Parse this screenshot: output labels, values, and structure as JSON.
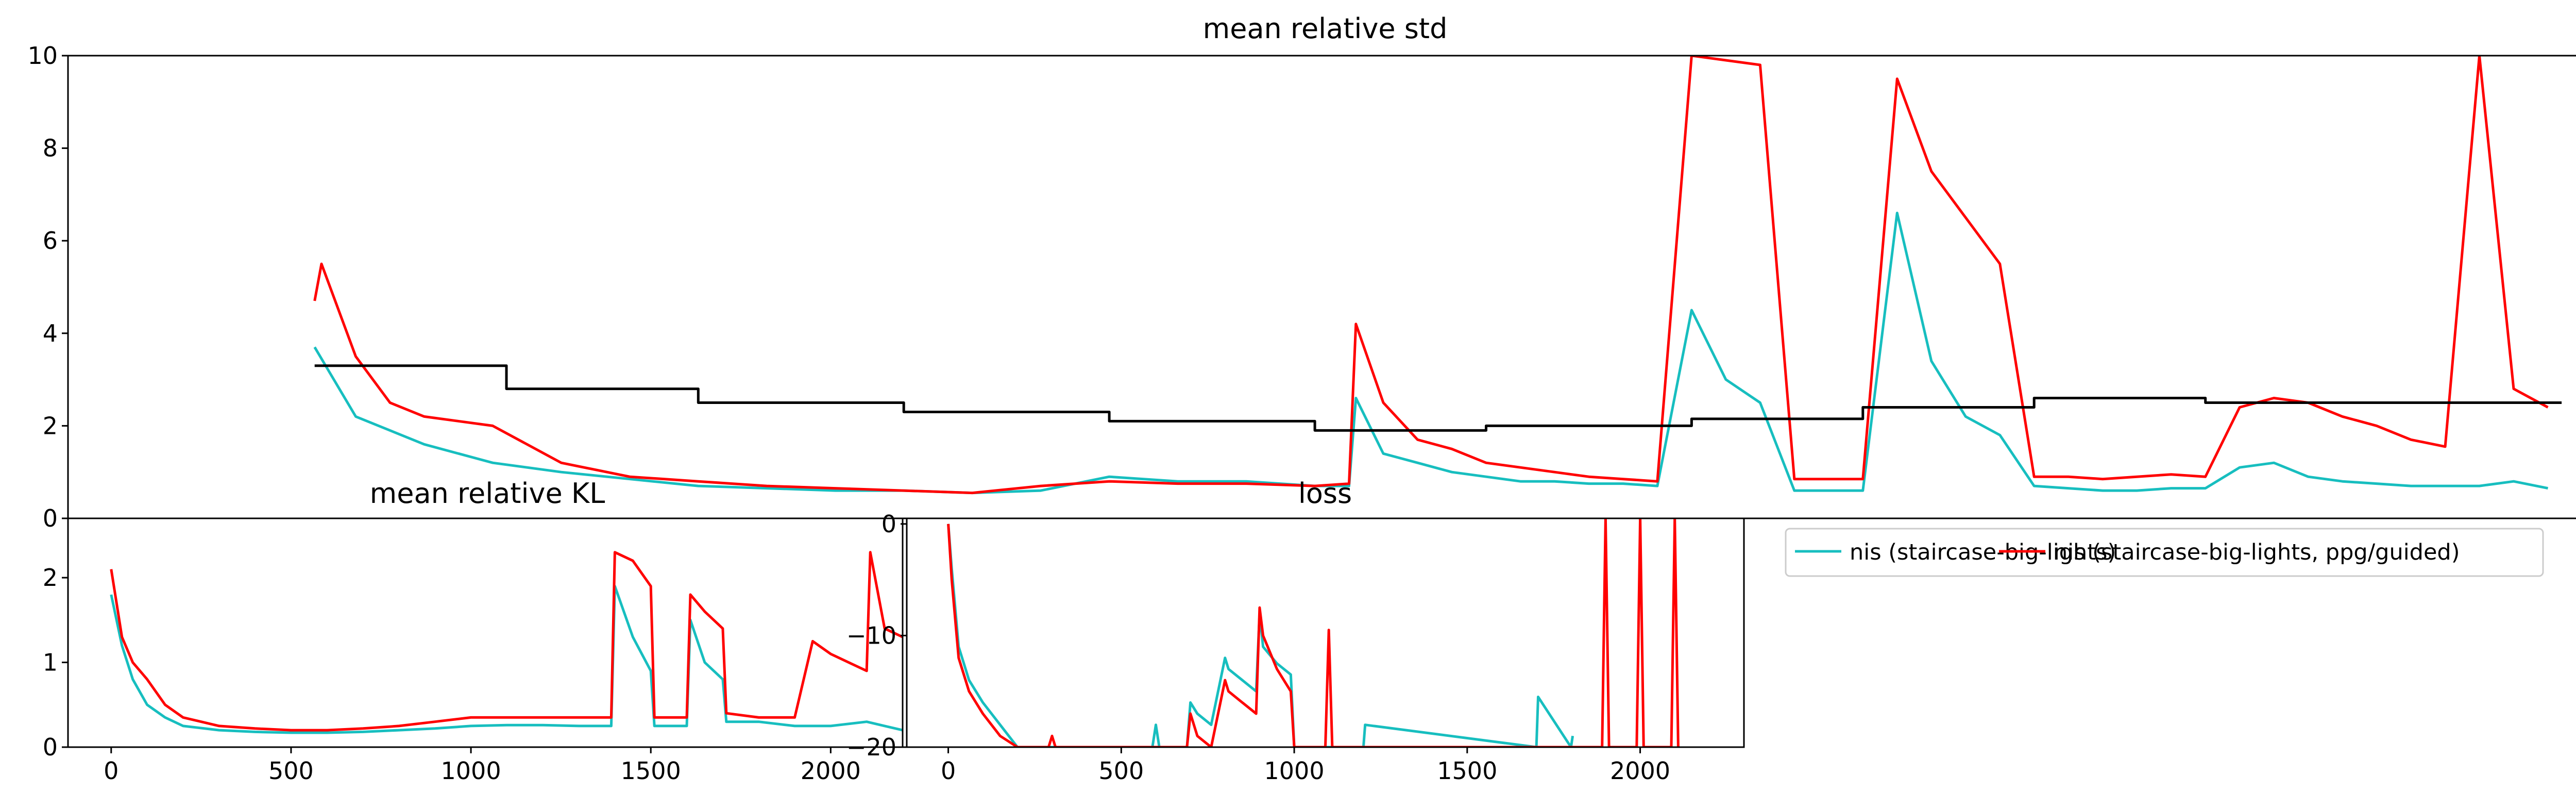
{
  "chart_data": [
    {
      "type": "line",
      "title": "mean relative std",
      "xlim": [
        -120,
        3550
      ],
      "ylim": [
        0,
        10
      ],
      "yticks": [
        "0",
        "2",
        "4",
        "6",
        "8",
        "10"
      ],
      "series": [
        {
          "name": "nis (staircase-big-lights)",
          "color": "#17bebf",
          "x": [
            240,
            300,
            400,
            500,
            600,
            700,
            800,
            900,
            1000,
            1100,
            1200,
            1300,
            1400,
            1500,
            1600,
            1700,
            1750,
            1760,
            1800,
            1850,
            1900,
            1950,
            2000,
            2050,
            2100,
            2150,
            2200,
            2250,
            2300,
            2350,
            2400,
            2450,
            2500,
            2550,
            2600,
            2650,
            2700,
            2750,
            2800,
            2850,
            2900,
            2950,
            3000,
            3050,
            3100,
            3150,
            3200,
            3250,
            3300,
            3350,
            3400,
            3450,
            3500
          ],
          "y": [
            3.7,
            2.2,
            1.6,
            1.2,
            1.0,
            0.85,
            0.7,
            0.65,
            0.6,
            0.6,
            0.55,
            0.6,
            0.9,
            0.8,
            0.8,
            0.7,
            0.7,
            2.6,
            1.4,
            1.2,
            1.0,
            0.9,
            0.8,
            0.8,
            0.75,
            0.75,
            0.7,
            4.5,
            3.0,
            2.5,
            0.6,
            0.6,
            0.6,
            6.6,
            3.4,
            2.2,
            1.8,
            0.7,
            0.65,
            0.6,
            0.6,
            0.65,
            0.65,
            1.1,
            1.2,
            0.9,
            0.8,
            0.75,
            0.7,
            0.7,
            0.7,
            0.8,
            0.65
          ]
        },
        {
          "name": "nis (staircase-big-lights, ppg/guided)",
          "color": "#ff0000",
          "x": [
            240,
            250,
            300,
            350,
            400,
            500,
            600,
            700,
            800,
            900,
            1000,
            1100,
            1200,
            1300,
            1400,
            1500,
            1600,
            1700,
            1750,
            1760,
            1800,
            1850,
            1900,
            1950,
            2000,
            2050,
            2100,
            2150,
            2200,
            2250,
            2300,
            2350,
            2400,
            2450,
            2500,
            2550,
            2600,
            2650,
            2700,
            2750,
            2800,
            2850,
            2900,
            2950,
            3000,
            3050,
            3100,
            3150,
            3200,
            3250,
            3300,
            3350,
            3400,
            3450,
            3500
          ],
          "y": [
            4.7,
            5.5,
            3.5,
            2.5,
            2.2,
            2.0,
            1.2,
            0.9,
            0.8,
            0.7,
            0.65,
            0.6,
            0.55,
            0.7,
            0.8,
            0.75,
            0.75,
            0.7,
            0.75,
            4.2,
            2.5,
            1.7,
            1.5,
            1.2,
            1.1,
            1.0,
            0.9,
            0.85,
            0.8,
            10.0,
            9.9,
            9.8,
            0.85,
            0.85,
            0.85,
            9.5,
            7.5,
            6.5,
            5.5,
            0.9,
            0.9,
            0.85,
            0.9,
            0.95,
            0.9,
            2.4,
            2.6,
            2.5,
            2.2,
            2.0,
            1.7,
            1.55,
            10.0,
            2.8,
            2.4
          ]
        },
        {
          "name": "",
          "color": "#000000",
          "x": [
            240,
            520,
            520,
            800,
            800,
            1100,
            1100,
            1400,
            1400,
            1700,
            1700,
            1950,
            1950,
            2250,
            2250,
            2500,
            2500,
            2750,
            2750,
            3000,
            3000,
            3520
          ],
          "y": [
            3.3,
            3.3,
            2.8,
            2.8,
            2.5,
            2.5,
            2.3,
            2.3,
            2.1,
            2.1,
            1.9,
            1.9,
            2.0,
            2.0,
            2.15,
            2.15,
            2.4,
            2.4,
            2.6,
            2.6,
            2.5,
            2.5
          ]
        }
      ],
      "xticks": []
    },
    {
      "type": "line",
      "title": "mean relative KL",
      "xlim": [
        -120,
        2200
      ],
      "ylim": [
        0,
        2.7
      ],
      "yticks": [
        "0",
        "1",
        "2"
      ],
      "xticks": [
        "0",
        "500",
        "1000",
        "1500",
        "2000"
      ],
      "series": [
        {
          "name": "nis (staircase-big-lights)",
          "color": "#17bebf",
          "x": [
            0,
            30,
            60,
            100,
            150,
            200,
            300,
            400,
            500,
            600,
            700,
            800,
            900,
            1000,
            1100,
            1200,
            1300,
            1390,
            1400,
            1450,
            1500,
            1510,
            1600,
            1610,
            1650,
            1700,
            1710,
            1800,
            1900,
            2000,
            2100,
            2150,
            2200
          ],
          "y": [
            1.8,
            1.2,
            0.8,
            0.5,
            0.35,
            0.25,
            0.2,
            0.18,
            0.17,
            0.17,
            0.18,
            0.2,
            0.22,
            0.25,
            0.26,
            0.26,
            0.25,
            0.25,
            1.9,
            1.3,
            0.9,
            0.25,
            0.25,
            1.5,
            1.0,
            0.8,
            0.3,
            0.3,
            0.25,
            0.25,
            0.3,
            0.25,
            0.2
          ]
        },
        {
          "name": "nis (staircase-big-lights, ppg/guided)",
          "color": "#ff0000",
          "x": [
            0,
            30,
            60,
            100,
            150,
            200,
            300,
            400,
            500,
            600,
            700,
            800,
            900,
            1000,
            1100,
            1200,
            1300,
            1390,
            1400,
            1450,
            1500,
            1510,
            1600,
            1610,
            1650,
            1700,
            1710,
            1800,
            1900,
            1950,
            2000,
            2050,
            2100,
            2110,
            2150,
            2200
          ],
          "y": [
            2.1,
            1.3,
            1.0,
            0.8,
            0.5,
            0.35,
            0.25,
            0.22,
            0.2,
            0.2,
            0.22,
            0.25,
            0.3,
            0.35,
            0.35,
            0.35,
            0.35,
            0.35,
            2.3,
            2.2,
            1.9,
            0.35,
            0.35,
            1.8,
            1.6,
            1.4,
            0.4,
            0.35,
            0.35,
            1.25,
            1.1,
            1.0,
            0.9,
            2.3,
            1.4,
            1.3
          ]
        }
      ]
    },
    {
      "type": "line",
      "title": "loss",
      "xlim": [
        -120,
        2300
      ],
      "ylim": [
        -20,
        0.5
      ],
      "yticks": [
        "0",
        "−10",
        "−20"
      ],
      "xticks": [
        "0",
        "500",
        "1000",
        "1500",
        "2000"
      ],
      "series": [
        {
          "name": "nis (staircase-big-lights)",
          "color": "#17bebf",
          "x": [
            0,
            10,
            30,
            60,
            100,
            150,
            200,
            210,
            590,
            600,
            610,
            690,
            700,
            720,
            760,
            800,
            810,
            850,
            890,
            900,
            910,
            950,
            990,
            1000,
            1010,
            1200,
            1205,
            1700,
            1705,
            1800,
            1805
          ],
          "y": [
            0,
            -4,
            -11,
            -14,
            -16,
            -18,
            -20,
            -20,
            -20,
            -18,
            -20,
            -20,
            -16,
            -17,
            -18,
            -12,
            -13,
            -14,
            -15,
            -8,
            -11,
            -12.5,
            -13.5,
            -20,
            -20,
            -20,
            -18,
            -20,
            -15.5,
            -20,
            -19
          ]
        },
        {
          "name": "nis (staircase-big-lights, ppg/guided)",
          "color": "#ff0000",
          "x": [
            0,
            10,
            30,
            60,
            100,
            150,
            200,
            210,
            290,
            300,
            310,
            690,
            700,
            720,
            760,
            800,
            810,
            850,
            890,
            900,
            910,
            950,
            990,
            1000,
            1010,
            1090,
            1100,
            1110,
            1890,
            1900,
            1910,
            1990,
            2000,
            2010,
            2090,
            2100,
            2110
          ],
          "y": [
            0,
            -5,
            -12,
            -15,
            -17,
            -19,
            -20,
            -20,
            -20,
            -19,
            -20,
            -20,
            -17,
            -19,
            -20,
            -14,
            -15,
            -16,
            -17,
            -7.5,
            -10,
            -13,
            -15,
            -20,
            -20,
            -20,
            -9.5,
            -20,
            -20,
            0.5,
            -20,
            -20,
            0.5,
            -20,
            -20,
            0.5,
            -20
          ]
        }
      ]
    }
  ],
  "legend": {
    "entries": [
      {
        "label": "nis (staircase-big-lights)",
        "color": "#17bebf"
      },
      {
        "label": "nis (staircase-big-lights, ppg/guided)",
        "color": "#ff0000"
      }
    ]
  }
}
